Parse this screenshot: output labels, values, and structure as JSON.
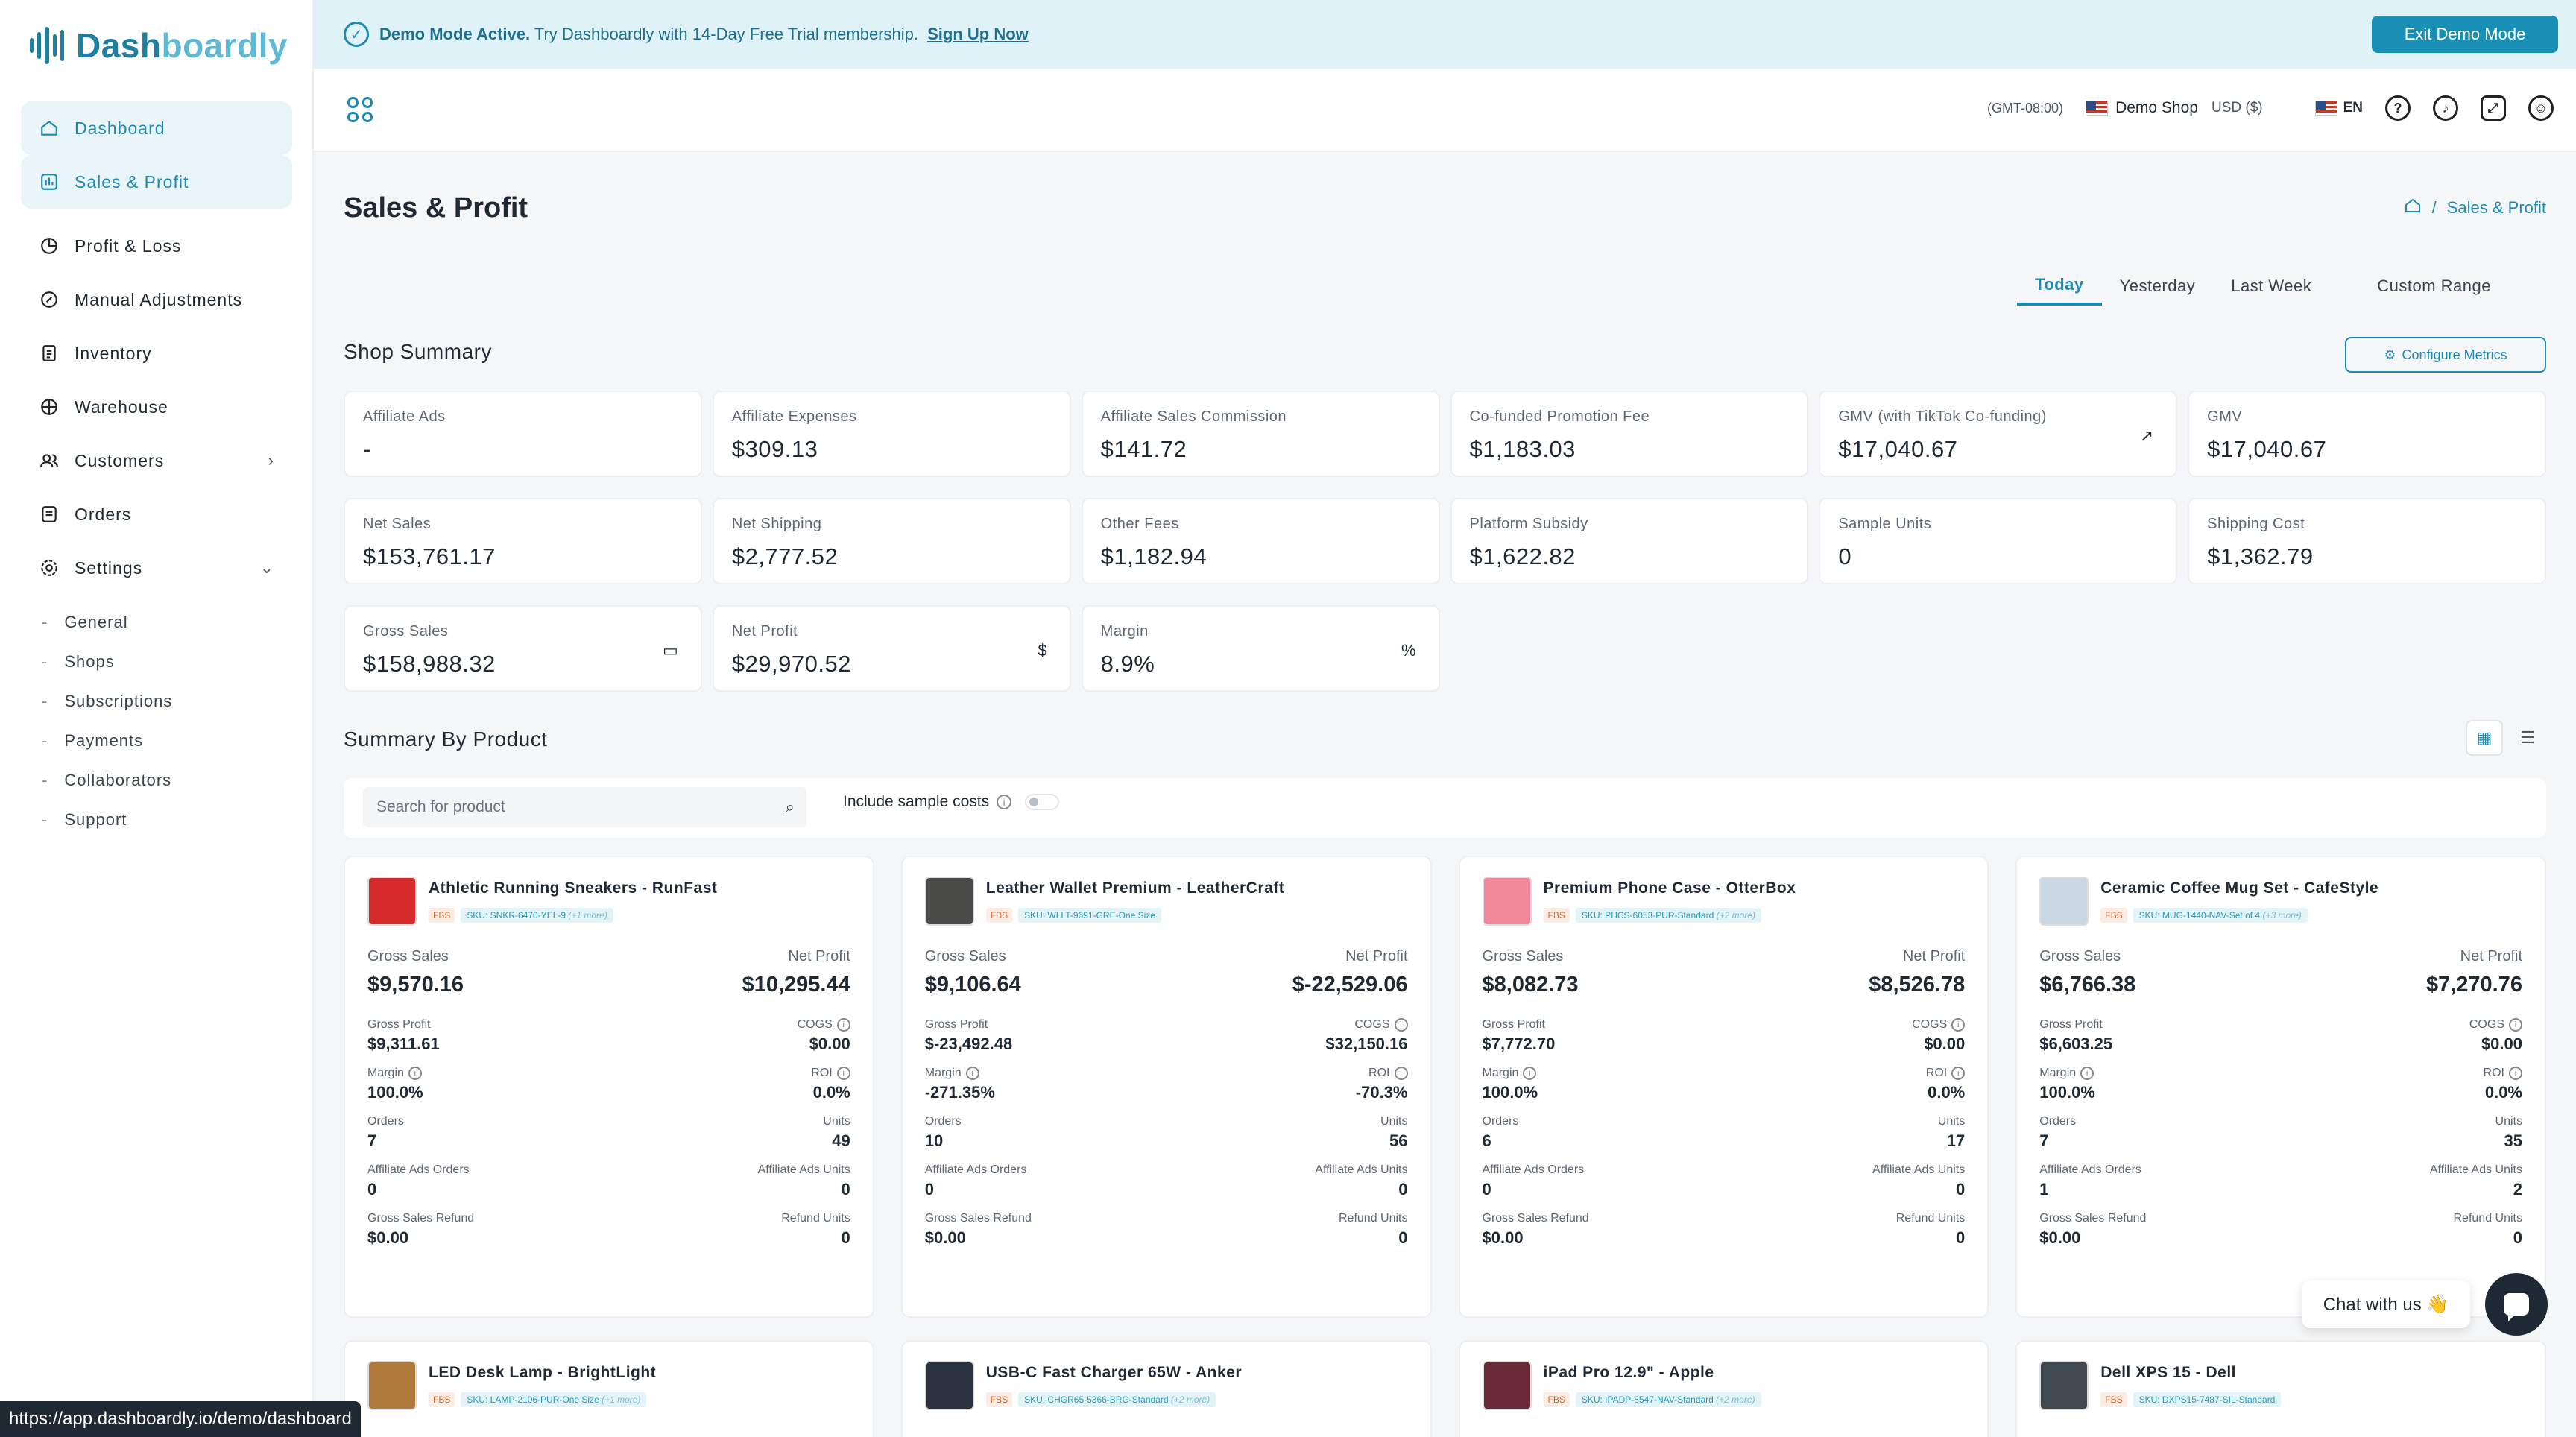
{
  "brand": {
    "name": "Dashboardly"
  },
  "sidebar": {
    "items": [
      {
        "label": "Dashboard",
        "icon": "home-icon",
        "active": true
      },
      {
        "label": "Sales & Profit",
        "icon": "chart-icon",
        "active": true
      },
      {
        "label": "Profit & Loss",
        "icon": "pie-icon"
      },
      {
        "label": "Manual Adjustments",
        "icon": "edit-icon"
      },
      {
        "label": "Inventory",
        "icon": "document-icon"
      },
      {
        "label": "Warehouse",
        "icon": "box-icon"
      },
      {
        "label": "Customers",
        "icon": "users-icon"
      },
      {
        "label": "Orders",
        "icon": "list-icon"
      },
      {
        "label": "Settings",
        "icon": "gear-icon"
      }
    ],
    "settings_sub": [
      "General",
      "Shops",
      "Subscriptions",
      "Payments",
      "Collaborators",
      "Support"
    ]
  },
  "banner": {
    "bold": "Demo Mode Active.",
    "text": "Try Dashboardly with 14-Day Free Trial membership.",
    "link": "Sign Up Now",
    "exit_button": "Exit Demo Mode"
  },
  "header": {
    "timezone": "(GMT-08:00)",
    "shop": "Demo Shop",
    "currency": "USD ($)",
    "lang": "EN"
  },
  "page": {
    "title": "Sales & Profit",
    "breadcrumb": "Sales & Profit",
    "tabs": [
      "Today",
      "Yesterday",
      "Last Week",
      "Custom Range"
    ],
    "active_tab": "Today"
  },
  "shop_summary": {
    "title": "Shop Summary",
    "configure_button": "Configure Metrics",
    "metrics": [
      {
        "label": "Affiliate Ads",
        "value": "-"
      },
      {
        "label": "Affiliate Expenses",
        "value": "$309.13"
      },
      {
        "label": "Affiliate Sales Commission",
        "value": "$141.72"
      },
      {
        "label": "Co-funded Promotion Fee",
        "value": "$1,183.03"
      },
      {
        "label": "GMV (with TikTok Co-funding)",
        "value": "$17,040.67",
        "icon": "↗"
      },
      {
        "label": "GMV",
        "value": "$17,040.67"
      },
      {
        "label": "Net Sales",
        "value": "$153,761.17"
      },
      {
        "label": "Net Shipping",
        "value": "$2,777.52"
      },
      {
        "label": "Other Fees",
        "value": "$1,182.94"
      },
      {
        "label": "Platform Subsidy",
        "value": "$1,622.82"
      },
      {
        "label": "Sample Units",
        "value": "0"
      },
      {
        "label": "Shipping Cost",
        "value": "$1,362.79"
      },
      {
        "label": "Gross Sales",
        "value": "$158,988.32",
        "icon": "▭"
      },
      {
        "label": "Net Profit",
        "value": "$29,970.52",
        "icon": "$"
      },
      {
        "label": "Margin",
        "value": "8.9%",
        "icon": "%"
      }
    ]
  },
  "product_summary": {
    "title": "Summary By Product",
    "search_placeholder": "Search for product",
    "include_sample": "Include sample costs",
    "labels": {
      "gross_sales": "Gross Sales",
      "net_profit": "Net Profit",
      "gross_profit": "Gross Profit",
      "cogs": "COGS",
      "margin": "Margin",
      "roi": "ROI",
      "orders": "Orders",
      "units": "Units",
      "aff_orders": "Affiliate Ads Orders",
      "aff_units": "Affiliate Ads Units",
      "refund": "Gross Sales Refund",
      "refund_units": "Refund Units",
      "fbs": "FBS"
    },
    "products": [
      {
        "name": "Athletic Running Sneakers - RunFast",
        "sku": "SKU: SNKR-6470-YEL-9",
        "more": "(+1 more)",
        "thumb": "#d42a2a",
        "gross_sales": "$9,570.16",
        "net_profit": "$10,295.44",
        "gross_profit": "$9,311.61",
        "cogs": "$0.00",
        "margin": "100.0%",
        "roi": "0.0%",
        "orders": "7",
        "units": "49",
        "aff_orders": "0",
        "aff_units": "0",
        "refund": "$0.00",
        "refund_units": "0"
      },
      {
        "name": "Leather Wallet Premium - LeatherCraft",
        "sku": "SKU: WLLT-9691-GRE-One Size",
        "more": "",
        "thumb": "#4a4a48",
        "gross_sales": "$9,106.64",
        "net_profit": "$-22,529.06",
        "gross_profit": "$-23,492.48",
        "cogs": "$32,150.16",
        "margin": "-271.35%",
        "roi": "-70.3%",
        "orders": "10",
        "units": "56",
        "aff_orders": "0",
        "aff_units": "0",
        "refund": "$0.00",
        "refund_units": "0"
      },
      {
        "name": "Premium Phone Case - OtterBox",
        "sku": "SKU: PHCS-6053-PUR-Standard",
        "more": "(+2 more)",
        "thumb": "#f08a9a",
        "gross_sales": "$8,082.73",
        "net_profit": "$8,526.78",
        "gross_profit": "$7,772.70",
        "cogs": "$0.00",
        "margin": "100.0%",
        "roi": "0.0%",
        "orders": "6",
        "units": "17",
        "aff_orders": "0",
        "aff_units": "0",
        "refund": "$0.00",
        "refund_units": "0"
      },
      {
        "name": "Ceramic Coffee Mug Set - CafeStyle",
        "sku": "SKU: MUG-1440-NAV-Set of 4",
        "more": "(+3 more)",
        "thumb": "#c9d7e3",
        "gross_sales": "$6,766.38",
        "net_profit": "$7,270.76",
        "gross_profit": "$6,603.25",
        "cogs": "$0.00",
        "margin": "100.0%",
        "roi": "0.0%",
        "orders": "7",
        "units": "35",
        "aff_orders": "1",
        "aff_units": "2",
        "refund": "$0.00",
        "refund_units": "0"
      },
      {
        "name": "LED Desk Lamp - BrightLight",
        "sku": "SKU: LAMP-2106-PUR-One Size",
        "more": "(+1 more)",
        "thumb": "#b07a3a"
      },
      {
        "name": "USB-C Fast Charger 65W - Anker",
        "sku": "SKU: CHGR65-5366-BRG-Standard",
        "more": "(+2 more)",
        "thumb": "#2a3240"
      },
      {
        "name": "iPad Pro 12.9\" - Apple",
        "sku": "SKU: IPADP-8547-NAV-Standard",
        "more": "(+2 more)",
        "thumb": "#6a2a3a"
      },
      {
        "name": "Dell XPS 15 - Dell",
        "sku": "SKU: DXPS15-7487-SIL-Standard",
        "more": "",
        "thumb": "#404850"
      }
    ]
  },
  "chat": {
    "label": "Chat with us 👋"
  },
  "status_url": "https://app.dashboardly.io/demo/dashboard"
}
